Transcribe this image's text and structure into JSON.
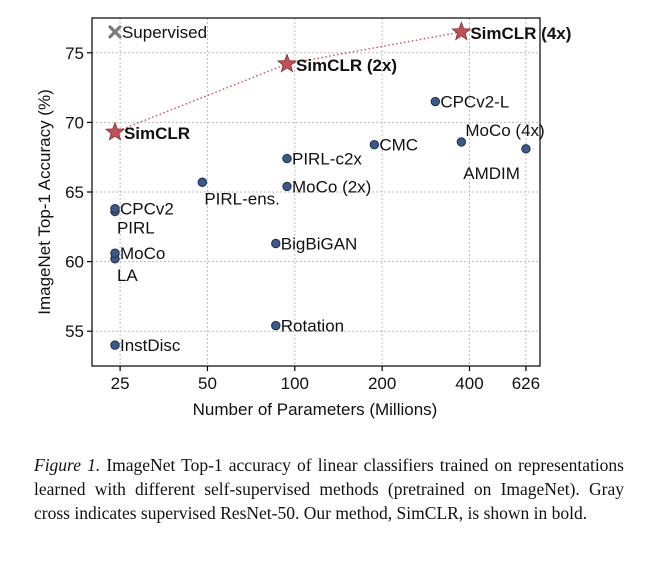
{
  "chart_data": {
    "type": "scatter",
    "xlabel": "Number of Parameters (Millions)",
    "ylabel": "ImageNet Top-1 Accuracy (%)",
    "x_scale": "log",
    "xlim": [
      20,
      700
    ],
    "ylim": [
      52.5,
      77.5
    ],
    "x_ticks": [
      25,
      50,
      100,
      200,
      400,
      626
    ],
    "y_ticks": [
      55,
      60,
      65,
      70,
      75
    ],
    "grid": true,
    "methods": [
      {
        "label": "InstDisc",
        "x": 24,
        "y": 54.0,
        "pos": "right"
      },
      {
        "label": "Rotation",
        "x": 86,
        "y": 55.4,
        "pos": "right"
      },
      {
        "label": "LA",
        "x": 24,
        "y": 60.2,
        "pos": "below-right"
      },
      {
        "label": "MoCo",
        "x": 24,
        "y": 60.6,
        "pos": "right"
      },
      {
        "label": "BigBiGAN",
        "x": 86,
        "y": 61.3,
        "pos": "right"
      },
      {
        "label": "PIRL",
        "x": 24,
        "y": 63.6,
        "pos": "below-right"
      },
      {
        "label": "CPCv2",
        "x": 24,
        "y": 63.8,
        "pos": "right"
      },
      {
        "label": "MoCo (2x)",
        "x": 94,
        "y": 65.4,
        "pos": "right"
      },
      {
        "label": "PIRL-ens.",
        "x": 48,
        "y": 65.7,
        "pos": "below-right"
      },
      {
        "label": "PIRL-c2x",
        "x": 94,
        "y": 67.4,
        "pos": "right"
      },
      {
        "label": "CMC",
        "x": 188,
        "y": 68.4,
        "pos": "right"
      },
      {
        "label": "MoCo (4x)",
        "x": 375,
        "y": 68.6,
        "pos": "above-right"
      },
      {
        "label": "AMDIM",
        "x": 626,
        "y": 68.1,
        "pos": "below-left"
      },
      {
        "label": "CPCv2-L",
        "x": 305,
        "y": 71.5,
        "pos": "right"
      }
    ],
    "simclr": [
      {
        "label": "SimCLR",
        "x": 24,
        "y": 69.3
      },
      {
        "label": "SimCLR (2x)",
        "x": 94,
        "y": 74.2
      },
      {
        "label": "SimCLR (4x)",
        "x": 375,
        "y": 76.5
      }
    ],
    "supervised": {
      "label": "Supervised",
      "x": 24,
      "y": 76.5
    },
    "colors": {
      "method": "#3b5a8a",
      "simclr": "#c0505a",
      "supervised": "#7a7a7a",
      "grid": "#bdbdbd"
    }
  },
  "caption": {
    "figure_label": "Figure 1.",
    "text": "ImageNet Top-1 accuracy of linear classifiers trained on representations learned with different self-supervised methods (pretrained on ImageNet). Gray cross indicates supervised ResNet-50. Our method, SimCLR, is shown in bold."
  }
}
